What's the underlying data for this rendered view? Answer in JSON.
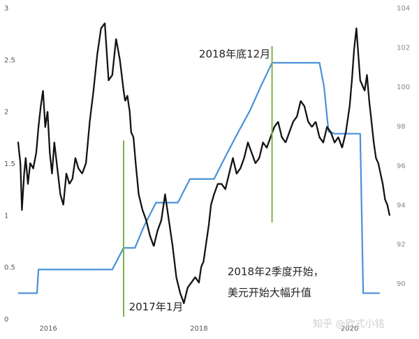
{
  "chart_data": {
    "type": "line",
    "title": "",
    "xlabel": "",
    "ylabel_left": "",
    "ylabel_right": "",
    "xlim": [
      2015.6,
      2020.55
    ],
    "x_ticks": [
      {
        "value": 2016,
        "label": "2016"
      },
      {
        "value": 2018,
        "label": "2018"
      },
      {
        "value": 2020,
        "label": "2020"
      }
    ],
    "ylim_left": [
      0,
      3
    ],
    "yticks_left": [
      0,
      0.5,
      1,
      1.5,
      2,
      2.5,
      3
    ],
    "ytick_labels_left": [
      "0",
      "0.5",
      "1",
      "1.5",
      "2",
      "2.5",
      "3"
    ],
    "ylim_right": [
      88.2,
      104
    ],
    "yticks_right": [
      90,
      92,
      94,
      96,
      98,
      100,
      102,
      104
    ],
    "ytick_labels_right": [
      "90",
      "92",
      "94",
      "96",
      "98",
      "100",
      "102",
      "104"
    ],
    "grid": false,
    "legend": "none",
    "series": [
      {
        "axis": "right",
        "style": "solid",
        "color": "#4a90d9",
        "x": [
          2015.6,
          2015.85,
          2015.87,
          2016.85,
          2017.0,
          2017.15,
          2017.27,
          2017.43,
          2017.72,
          2017.88,
          2018.2,
          2018.36,
          2018.51,
          2018.68,
          2018.82,
          2018.97,
          2019.6,
          2019.66,
          2019.72,
          2019.8,
          2020.14,
          2020.18,
          2020.4
        ],
        "y": [
          89.5,
          89.5,
          90.7,
          90.7,
          91.8,
          91.8,
          92.9,
          94.1,
          94.1,
          95.3,
          95.3,
          96.5,
          97.6,
          98.8,
          100.0,
          101.2,
          101.2,
          100.0,
          97.7,
          97.6,
          97.6,
          89.5,
          89.5
        ]
      },
      {
        "axis": "left",
        "style": "dotted",
        "color": "#111111",
        "x": [
          2015.6,
          2015.63,
          2015.65,
          2015.68,
          2015.7,
          2015.73,
          2015.76,
          2015.8,
          2015.84,
          2015.87,
          2015.9,
          2015.93,
          2015.96,
          2015.99,
          2016.02,
          2016.05,
          2016.08,
          2016.12,
          2016.16,
          2016.2,
          2016.24,
          2016.28,
          2016.32,
          2016.36,
          2016.4,
          2016.45,
          2016.5,
          2016.55,
          2016.6,
          2016.65,
          2016.7,
          2016.75,
          2016.8,
          2016.85,
          2016.9,
          2016.95,
          2017.0,
          2017.02,
          2017.05,
          2017.08,
          2017.1,
          2017.13,
          2017.16,
          2017.2,
          2017.25,
          2017.3,
          2017.35,
          2017.4,
          2017.45,
          2017.5,
          2017.55,
          2017.6,
          2017.65,
          2017.7,
          2017.75,
          2017.8,
          2017.85,
          2017.9,
          2017.95,
          2018.0,
          2018.03,
          2018.06,
          2018.1,
          2018.13,
          2018.16,
          2018.2,
          2018.25,
          2018.3,
          2018.35,
          2018.4,
          2018.45,
          2018.5,
          2018.55,
          2018.6,
          2018.65,
          2018.7,
          2018.75,
          2018.8,
          2018.85,
          2018.9,
          2018.95,
          2019.0,
          2019.05,
          2019.1,
          2019.15,
          2019.2,
          2019.25,
          2019.3,
          2019.35,
          2019.4,
          2019.45,
          2019.5,
          2019.55,
          2019.6,
          2019.65,
          2019.7,
          2019.75,
          2019.8,
          2019.85,
          2019.9,
          2019.95,
          2020.0,
          2020.03,
          2020.06,
          2020.09,
          2020.12,
          2020.14,
          2020.17,
          2020.2,
          2020.23,
          2020.26,
          2020.29,
          2020.32,
          2020.35,
          2020.38,
          2020.41,
          2020.44,
          2020.47,
          2020.5,
          2020.53
        ],
        "y": [
          1.7,
          1.5,
          1.05,
          1.4,
          1.55,
          1.3,
          1.5,
          1.45,
          1.6,
          1.85,
          2.05,
          2.2,
          1.85,
          2.0,
          1.6,
          1.4,
          1.7,
          1.45,
          1.2,
          1.1,
          1.4,
          1.3,
          1.35,
          1.55,
          1.45,
          1.4,
          1.5,
          1.9,
          2.2,
          2.55,
          2.8,
          2.85,
          2.3,
          2.35,
          2.7,
          2.5,
          2.2,
          2.1,
          2.15,
          2.0,
          1.8,
          1.75,
          1.5,
          1.2,
          1.05,
          0.95,
          0.8,
          0.7,
          0.85,
          0.95,
          1.2,
          0.95,
          0.7,
          0.4,
          0.25,
          0.15,
          0.3,
          0.35,
          0.4,
          0.35,
          0.5,
          0.55,
          0.75,
          0.9,
          1.1,
          1.2,
          1.3,
          1.3,
          1.25,
          1.4,
          1.55,
          1.4,
          1.45,
          1.55,
          1.7,
          1.6,
          1.5,
          1.55,
          1.7,
          1.65,
          1.75,
          1.85,
          1.9,
          1.75,
          1.7,
          1.8,
          1.9,
          1.95,
          2.1,
          2.05,
          1.9,
          1.85,
          1.9,
          1.75,
          1.7,
          1.85,
          1.8,
          1.7,
          1.75,
          1.65,
          1.8,
          2.05,
          2.3,
          2.6,
          2.8,
          2.5,
          2.3,
          2.25,
          2.2,
          2.35,
          2.1,
          1.9,
          1.7,
          1.55,
          1.5,
          1.4,
          1.3,
          1.15,
          1.1,
          1.0
        ]
      }
    ],
    "vlines": [
      {
        "x": 2017.0,
        "y_top_left": 1.72,
        "y_bottom_left": 0.02,
        "color": "#7cb342"
      },
      {
        "x": 2018.97,
        "y_top_left": 2.63,
        "y_bottom_left": 0.93,
        "color": "#7cb342"
      }
    ],
    "annotations": [
      {
        "text": "2018年底12月",
        "x": 2018.0,
        "y_left": 2.52
      },
      {
        "text": "2018年2季度开始，",
        "x": 2018.38,
        "y_left": 0.42
      },
      {
        "text": "美元开始大幅升值",
        "x": 2018.38,
        "y_left": 0.22
      },
      {
        "text": "2017年1月",
        "x": 2017.07,
        "y_left": 0.08
      }
    ],
    "watermark": "知乎 @欧式小铭"
  }
}
